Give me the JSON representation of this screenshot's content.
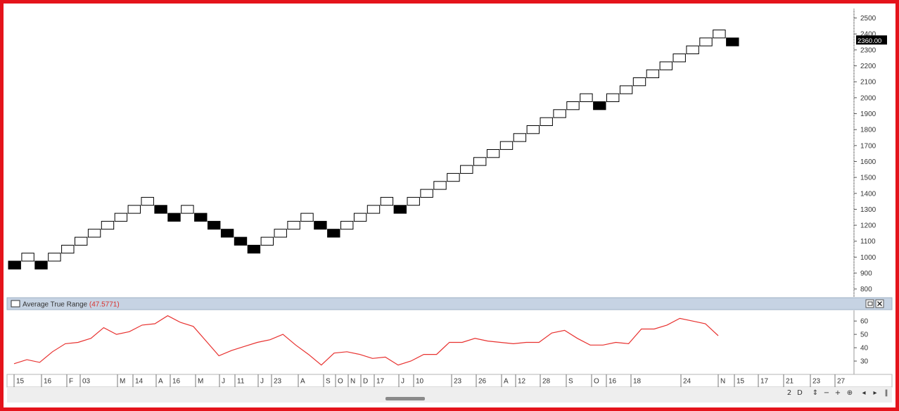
{
  "chart_data": [
    {
      "type": "renko",
      "title": "",
      "ylim": [
        750,
        2560
      ],
      "y_ticks": [
        800,
        900,
        1000,
        1100,
        1200,
        1300,
        1400,
        1500,
        1600,
        1700,
        1800,
        1900,
        2000,
        2100,
        2200,
        2300,
        2400,
        2500
      ],
      "y_tick_labels": [
        "800",
        "900",
        "1000",
        "1100",
        "1200",
        "1300",
        "1400",
        "1500",
        "1600",
        "1700",
        "1800",
        "1900",
        "2000",
        "2100",
        "2200",
        "2300",
        "2400",
        "2500"
      ],
      "brick_size": 50,
      "bricks": [
        {
          "low": 925,
          "high": 975,
          "dir": "down"
        },
        {
          "low": 975,
          "high": 1025,
          "dir": "up"
        },
        {
          "low": 925,
          "high": 975,
          "dir": "down"
        },
        {
          "low": 975,
          "high": 1025,
          "dir": "up"
        },
        {
          "low": 1025,
          "high": 1075,
          "dir": "up"
        },
        {
          "low": 1075,
          "high": 1125,
          "dir": "up"
        },
        {
          "low": 1125,
          "high": 1175,
          "dir": "up"
        },
        {
          "low": 1175,
          "high": 1225,
          "dir": "up"
        },
        {
          "low": 1225,
          "high": 1275,
          "dir": "up"
        },
        {
          "low": 1275,
          "high": 1325,
          "dir": "up"
        },
        {
          "low": 1325,
          "high": 1375,
          "dir": "up"
        },
        {
          "low": 1275,
          "high": 1325,
          "dir": "down"
        },
        {
          "low": 1225,
          "high": 1275,
          "dir": "down"
        },
        {
          "low": 1275,
          "high": 1325,
          "dir": "up"
        },
        {
          "low": 1225,
          "high": 1275,
          "dir": "down"
        },
        {
          "low": 1175,
          "high": 1225,
          "dir": "down"
        },
        {
          "low": 1125,
          "high": 1175,
          "dir": "down"
        },
        {
          "low": 1075,
          "high": 1125,
          "dir": "down"
        },
        {
          "low": 1025,
          "high": 1075,
          "dir": "down"
        },
        {
          "low": 1075,
          "high": 1125,
          "dir": "up"
        },
        {
          "low": 1125,
          "high": 1175,
          "dir": "up"
        },
        {
          "low": 1175,
          "high": 1225,
          "dir": "up"
        },
        {
          "low": 1225,
          "high": 1275,
          "dir": "up"
        },
        {
          "low": 1175,
          "high": 1225,
          "dir": "down"
        },
        {
          "low": 1125,
          "high": 1175,
          "dir": "down"
        },
        {
          "low": 1175,
          "high": 1225,
          "dir": "up"
        },
        {
          "low": 1225,
          "high": 1275,
          "dir": "up"
        },
        {
          "low": 1275,
          "high": 1325,
          "dir": "up"
        },
        {
          "low": 1325,
          "high": 1375,
          "dir": "up"
        },
        {
          "low": 1275,
          "high": 1325,
          "dir": "down"
        },
        {
          "low": 1325,
          "high": 1375,
          "dir": "up"
        },
        {
          "low": 1375,
          "high": 1425,
          "dir": "up"
        },
        {
          "low": 1425,
          "high": 1475,
          "dir": "up"
        },
        {
          "low": 1475,
          "high": 1525,
          "dir": "up"
        },
        {
          "low": 1525,
          "high": 1575,
          "dir": "up"
        },
        {
          "low": 1575,
          "high": 1625,
          "dir": "up"
        },
        {
          "low": 1625,
          "high": 1675,
          "dir": "up"
        },
        {
          "low": 1675,
          "high": 1725,
          "dir": "up"
        },
        {
          "low": 1725,
          "high": 1775,
          "dir": "up"
        },
        {
          "low": 1775,
          "high": 1825,
          "dir": "up"
        },
        {
          "low": 1825,
          "high": 1875,
          "dir": "up"
        },
        {
          "low": 1875,
          "high": 1925,
          "dir": "up"
        },
        {
          "low": 1925,
          "high": 1975,
          "dir": "up"
        },
        {
          "low": 1975,
          "high": 2025,
          "dir": "up"
        },
        {
          "low": 1925,
          "high": 1975,
          "dir": "down"
        },
        {
          "low": 1975,
          "high": 2025,
          "dir": "up"
        },
        {
          "low": 2025,
          "high": 2075,
          "dir": "up"
        },
        {
          "low": 2075,
          "high": 2125,
          "dir": "up"
        },
        {
          "low": 2125,
          "high": 2175,
          "dir": "up"
        },
        {
          "low": 2175,
          "high": 2225,
          "dir": "up"
        },
        {
          "low": 2225,
          "high": 2275,
          "dir": "up"
        },
        {
          "low": 2275,
          "high": 2325,
          "dir": "up"
        },
        {
          "low": 2325,
          "high": 2375,
          "dir": "up"
        },
        {
          "low": 2375,
          "high": 2425,
          "dir": "up"
        },
        {
          "low": 2325,
          "high": 2375,
          "dir": "down"
        }
      ],
      "last_value_label": "2360.00",
      "colors": {
        "up_fill": "#ffffff",
        "down_fill": "#000000",
        "stroke": "#000000"
      }
    },
    {
      "type": "line",
      "title": "Average True Range",
      "value_label": "(47.5771)",
      "ylim": [
        20,
        68
      ],
      "y_ticks": [
        30,
        40,
        50,
        60
      ],
      "y_tick_labels": [
        "30",
        "40",
        "50",
        "60"
      ],
      "series": [
        {
          "values": [
            28,
            31,
            29,
            37,
            43,
            44,
            47,
            55,
            50,
            52,
            57,
            58,
            64,
            59,
            56,
            45,
            34,
            38,
            41,
            44,
            46,
            50,
            42,
            35,
            27,
            36,
            37,
            35,
            32,
            33,
            27,
            30,
            35,
            35,
            44,
            44,
            47,
            45,
            44,
            43,
            44,
            44,
            51,
            53,
            47,
            42,
            42,
            44,
            43,
            54,
            54,
            57,
            62,
            60,
            58,
            49
          ],
          "color": "#e8312f"
        }
      ]
    }
  ],
  "x_axis": {
    "tick_labels": [
      "15",
      "16",
      "F",
      "03",
      "M",
      "14",
      "A",
      "16",
      "M",
      "J",
      "11",
      "J",
      "23",
      "A",
      "S",
      "O",
      "N",
      "D",
      "17",
      "J",
      "10",
      "23",
      "26",
      "A",
      "12",
      "28",
      "S",
      "O",
      "16",
      "18",
      "24",
      "N",
      "15",
      "17",
      "21",
      "23",
      "27"
    ]
  },
  "toolbar": {
    "glyphs": [
      "2",
      "D",
      "⇕",
      "−",
      "+",
      "⊕",
      "◂",
      "▸",
      "‖"
    ]
  },
  "colors": {
    "frame": "#e4131b",
    "pane_header": "#c6d3e3",
    "atr_value": "#d9302c",
    "grid": "#d6d6d6"
  }
}
